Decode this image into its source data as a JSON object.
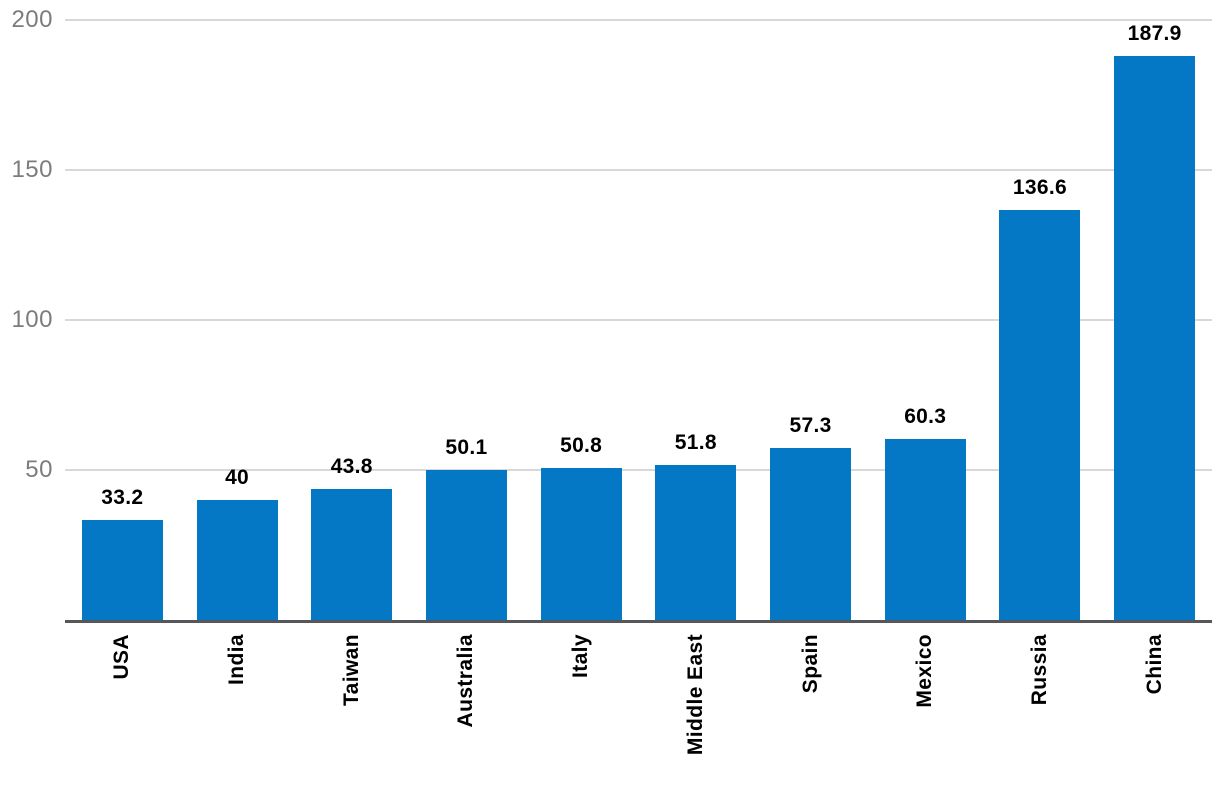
{
  "chart_data": {
    "type": "bar",
    "title": "",
    "xlabel": "",
    "ylabel": "",
    "categories": [
      "USA",
      "India",
      "Taiwan",
      "Australia",
      "Italy",
      "Middle East",
      "Spain",
      "Mexico",
      "Russia",
      "China"
    ],
    "values": [
      33.2,
      40,
      43.8,
      50.1,
      50.8,
      51.8,
      57.3,
      60.3,
      136.6,
      187.9
    ],
    "value_labels": [
      "33.2",
      "40",
      "43.8",
      "50.1",
      "50.8",
      "51.8",
      "57.3",
      "60.3",
      "136.6",
      "187.9"
    ],
    "yticks": [
      50,
      100,
      150,
      200
    ],
    "ytick_labels": [
      "50",
      "100",
      "150",
      "200"
    ],
    "ylim": [
      0,
      200
    ],
    "grid": true,
    "legend": false,
    "colors": {
      "bar": "#0478c4",
      "gridline": "#d8d8d8",
      "axis_line": "#56575b",
      "tick_label": "#7b7c7e",
      "value_label": "#000000",
      "category_label": "#000000",
      "background": "#ffffff"
    }
  }
}
